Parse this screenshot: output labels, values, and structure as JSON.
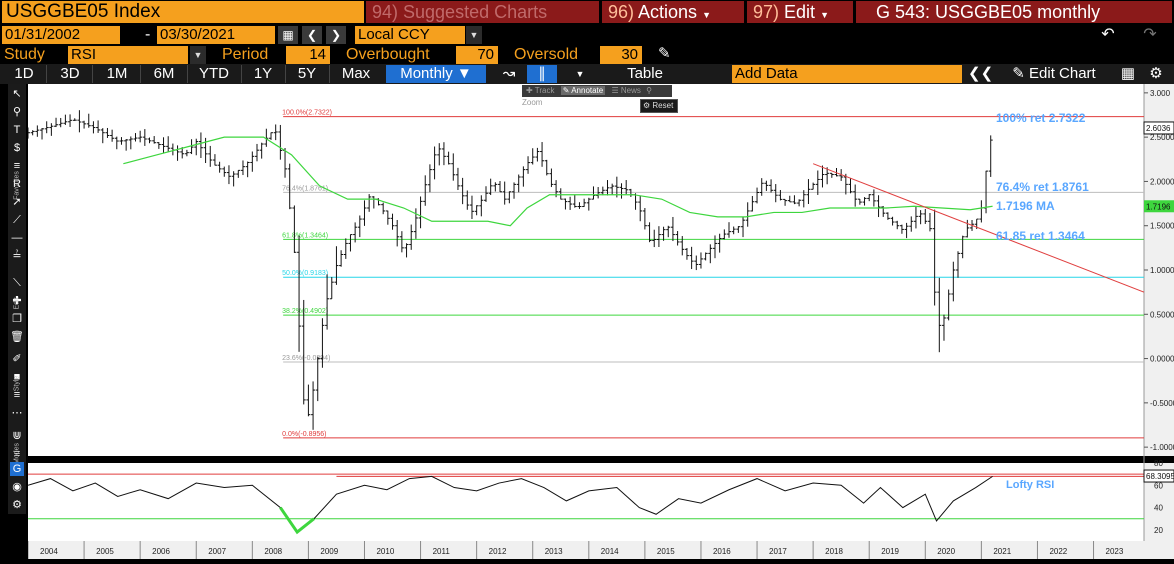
{
  "header": {
    "ticker": "USGGBE05 Index",
    "menu_suggested": "94) Suggested Charts",
    "menu_actions_num": "96)",
    "menu_actions": "Actions",
    "menu_edit_num": "97)",
    "menu_edit": "Edit",
    "title": "G 543: USGGBE05 monthly"
  },
  "dates": {
    "start": "01/31/2002",
    "dash": "-",
    "end": "03/30/2021",
    "currency": "Local CCY"
  },
  "study": {
    "label": "Study",
    "value": "RSI",
    "period_label": "Period",
    "period": "14",
    "overbought_label": "Overbought",
    "overbought": "70",
    "oversold_label": "Oversold",
    "oversold": "30"
  },
  "periods": [
    "1D",
    "3D",
    "1M",
    "6M",
    "YTD",
    "1Y",
    "5Y",
    "Max"
  ],
  "frequency": "Monthly",
  "table_label": "Table",
  "add_data_placeholder": "Add Data",
  "edit_chart_label": "Edit Chart",
  "mini_toolbar": {
    "track": "Track",
    "annotate": "Annotate",
    "news": "News",
    "zoom": "Zoom",
    "reset": "Reset"
  },
  "side_labels": {
    "favorites": "Favorites",
    "edit": "Edit",
    "style": "Style",
    "modes": "Modes"
  },
  "colors": {
    "orange": "#f5a01e",
    "menu_red": "#8b1a1a",
    "fib_red": "#e03c3c",
    "fib_green": "#3ed63e",
    "fib_cyan": "#27d6e8",
    "ma_green": "#3ed63e",
    "trend_red": "#e04040",
    "annotation_blue": "#5aa7ff"
  },
  "chart_data": [
    {
      "type": "ohlc-bar",
      "title": "USGGBE05 Index",
      "frequency": "monthly",
      "x_range": [
        "2004-01",
        "2023-12"
      ],
      "ylim": [
        -1.1,
        3.1
      ],
      "y_ticks": [
        "3.000",
        "2.5000",
        "2.0000",
        "1.5000",
        "1.0000",
        "0.5000",
        "0.0000",
        "-0.5000",
        "-1.0000"
      ],
      "x_ticks": [
        "2004",
        "2005",
        "2006",
        "2007",
        "2008",
        "2009",
        "2010",
        "2011",
        "2012",
        "2013",
        "2014",
        "2015",
        "2016",
        "2017",
        "2018",
        "2019",
        "2020",
        "2021",
        "2022",
        "2023"
      ],
      "last_price": "2.6036",
      "ma_value": "1.7196",
      "fib_levels": [
        {
          "label": "100.0%(2.7322)",
          "value": 2.7322,
          "color": "red"
        },
        {
          "label": "76.4%(1.8761)",
          "value": 1.8761,
          "color": "gray"
        },
        {
          "label": "61.8%(1.3464)",
          "value": 1.3464,
          "color": "green"
        },
        {
          "label": "50.0%(0.9183)",
          "value": 0.9183,
          "color": "cyan"
        },
        {
          "label": "38.2%(0.4902)",
          "value": 0.4902,
          "color": "green"
        },
        {
          "label": "23.6%(-0.0394)",
          "value": -0.0394,
          "color": "gray"
        },
        {
          "label": "0.0%(-0.8956)",
          "value": -0.8956,
          "color": "red"
        }
      ],
      "annotations": [
        "100% ret 2.7322",
        "76.4% ret 1.8761",
        "1.7196 MA",
        "61.85 ret 1.3464"
      ],
      "price_path": [
        [
          2004.0,
          2.55
        ],
        [
          2004.4,
          2.62
        ],
        [
          2004.8,
          2.7
        ],
        [
          2005.2,
          2.6
        ],
        [
          2005.6,
          2.45
        ],
        [
          2006.0,
          2.5
        ],
        [
          2006.4,
          2.4
        ],
        [
          2006.8,
          2.3
        ],
        [
          2007.0,
          2.45
        ],
        [
          2007.3,
          2.2
        ],
        [
          2007.6,
          2.05
        ],
        [
          2007.9,
          2.2
        ],
        [
          2008.2,
          2.45
        ],
        [
          2008.4,
          2.6
        ],
        [
          2008.6,
          2.1
        ],
        [
          2008.75,
          1.2
        ],
        [
          2008.85,
          0.2
        ],
        [
          2008.95,
          -0.8
        ],
        [
          2009.1,
          -0.3
        ],
        [
          2009.3,
          0.6
        ],
        [
          2009.5,
          1.05
        ],
        [
          2009.7,
          1.35
        ],
        [
          2009.9,
          1.55
        ],
        [
          2010.1,
          1.85
        ],
        [
          2010.3,
          1.7
        ],
        [
          2010.5,
          1.5
        ],
        [
          2010.7,
          1.2
        ],
        [
          2010.9,
          1.55
        ],
        [
          2011.1,
          2.0
        ],
        [
          2011.3,
          2.4
        ],
        [
          2011.5,
          2.2
        ],
        [
          2011.7,
          1.9
        ],
        [
          2011.9,
          1.65
        ],
        [
          2012.1,
          1.8
        ],
        [
          2012.3,
          2.0
        ],
        [
          2012.5,
          1.8
        ],
        [
          2012.7,
          2.0
        ],
        [
          2012.9,
          2.2
        ],
        [
          2013.1,
          2.35
        ],
        [
          2013.3,
          2.0
        ],
        [
          2013.5,
          1.8
        ],
        [
          2013.8,
          1.7
        ],
        [
          2014.1,
          1.85
        ],
        [
          2014.4,
          1.95
        ],
        [
          2014.7,
          1.9
        ],
        [
          2014.9,
          1.7
        ],
        [
          2015.1,
          1.3
        ],
        [
          2015.4,
          1.5
        ],
        [
          2015.7,
          1.2
        ],
        [
          2015.9,
          1.05
        ],
        [
          2016.1,
          1.2
        ],
        [
          2016.4,
          1.4
        ],
        [
          2016.7,
          1.5
        ],
        [
          2016.9,
          1.75
        ],
        [
          2017.1,
          2.0
        ],
        [
          2017.4,
          1.8
        ],
        [
          2017.7,
          1.75
        ],
        [
          2017.9,
          1.9
        ],
        [
          2018.2,
          2.1
        ],
        [
          2018.5,
          2.05
        ],
        [
          2018.8,
          1.75
        ],
        [
          2019.0,
          1.85
        ],
        [
          2019.3,
          1.6
        ],
        [
          2019.6,
          1.45
        ],
        [
          2019.9,
          1.65
        ],
        [
          2020.1,
          1.45
        ],
        [
          2020.2,
          0.4
        ],
        [
          2020.3,
          0.35
        ],
        [
          2020.5,
          1.0
        ],
        [
          2020.7,
          1.45
        ],
        [
          2020.9,
          1.55
        ],
        [
          2021.0,
          1.7
        ],
        [
          2021.1,
          2.2
        ],
        [
          2021.2,
          2.6
        ]
      ],
      "ma_path": [
        [
          2005.7,
          2.2
        ],
        [
          2006.3,
          2.3
        ],
        [
          2006.9,
          2.4
        ],
        [
          2007.5,
          2.5
        ],
        [
          2008.2,
          2.5
        ],
        [
          2008.7,
          2.3
        ],
        [
          2009.2,
          1.95
        ],
        [
          2009.7,
          1.8
        ],
        [
          2010.2,
          1.8
        ],
        [
          2010.7,
          1.7
        ],
        [
          2011.2,
          1.55
        ],
        [
          2011.7,
          1.55
        ],
        [
          2012.2,
          1.55
        ],
        [
          2012.6,
          1.5
        ],
        [
          2012.9,
          1.7
        ],
        [
          2013.3,
          1.85
        ],
        [
          2013.8,
          1.85
        ],
        [
          2014.3,
          1.85
        ],
        [
          2014.8,
          1.85
        ],
        [
          2015.3,
          1.8
        ],
        [
          2015.8,
          1.65
        ],
        [
          2016.3,
          1.6
        ],
        [
          2016.8,
          1.6
        ],
        [
          2017.3,
          1.65
        ],
        [
          2017.8,
          1.65
        ],
        [
          2018.3,
          1.7
        ],
        [
          2018.8,
          1.7
        ],
        [
          2019.3,
          1.7
        ],
        [
          2019.8,
          1.72
        ],
        [
          2020.3,
          1.7
        ],
        [
          2020.8,
          1.68
        ],
        [
          2021.2,
          1.72
        ]
      ],
      "trend_line": {
        "start": [
          2018.0,
          2.2
        ],
        "end": [
          2023.9,
          0.75
        ]
      }
    },
    {
      "type": "line",
      "title": "Lofty RSI",
      "ylim": [
        10,
        80
      ],
      "y_ticks": [
        "80",
        "60",
        "40",
        "20"
      ],
      "last_value": "68.3095",
      "overbought": 70,
      "oversold": 30,
      "series": [
        {
          "name": "Lofty RSI",
          "points": [
            [
              2004.0,
              60
            ],
            [
              2004.4,
              66
            ],
            [
              2004.8,
              55
            ],
            [
              2005.2,
              62
            ],
            [
              2005.6,
              50
            ],
            [
              2006.0,
              56
            ],
            [
              2006.5,
              48
            ],
            [
              2007.0,
              62
            ],
            [
              2007.5,
              58
            ],
            [
              2008.0,
              60
            ],
            [
              2008.5,
              40
            ],
            [
              2008.8,
              18
            ],
            [
              2009.1,
              30
            ],
            [
              2009.5,
              52
            ],
            [
              2010.0,
              60
            ],
            [
              2010.4,
              56
            ],
            [
              2010.8,
              66
            ],
            [
              2011.2,
              68
            ],
            [
              2011.6,
              58
            ],
            [
              2012.0,
              55
            ],
            [
              2012.4,
              62
            ],
            [
              2012.8,
              66
            ],
            [
              2013.2,
              58
            ],
            [
              2013.6,
              46
            ],
            [
              2014.0,
              55
            ],
            [
              2014.5,
              58
            ],
            [
              2014.9,
              40
            ],
            [
              2015.2,
              34
            ],
            [
              2015.6,
              48
            ],
            [
              2016.0,
              44
            ],
            [
              2016.5,
              56
            ],
            [
              2017.0,
              66
            ],
            [
              2017.5,
              55
            ],
            [
              2018.0,
              62
            ],
            [
              2018.5,
              60
            ],
            [
              2018.9,
              44
            ],
            [
              2019.2,
              58
            ],
            [
              2019.6,
              40
            ],
            [
              2020.0,
              52
            ],
            [
              2020.2,
              28
            ],
            [
              2020.5,
              46
            ],
            [
              2020.9,
              58
            ],
            [
              2021.2,
              68
            ]
          ]
        }
      ]
    }
  ]
}
